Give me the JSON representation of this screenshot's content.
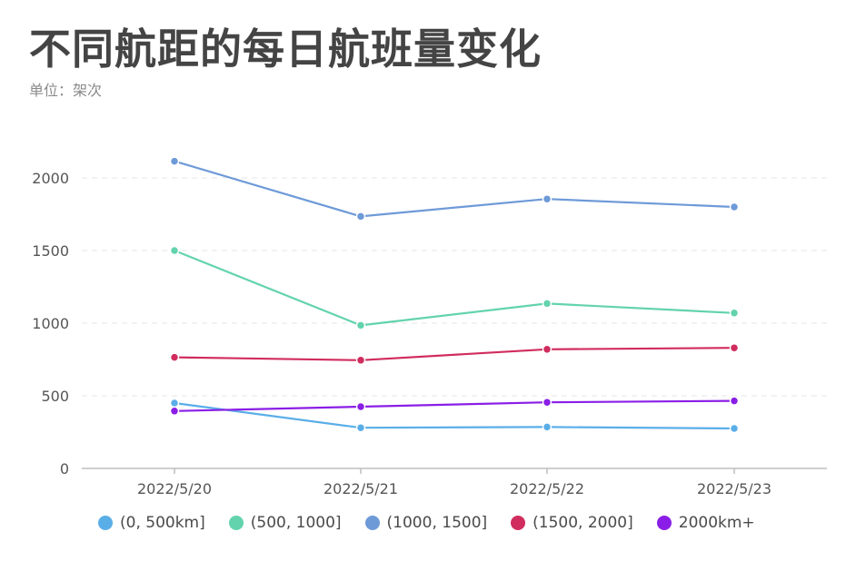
{
  "title": "不同航距的每日航班量变化",
  "subtitle": "单位：架次",
  "colors": {
    "axis": "#bdbdbd",
    "grid": "#e6e6e6",
    "tick_text": "#555555"
  },
  "chart_data": {
    "type": "line",
    "title": "不同航距的每日航班量变化",
    "subtitle": "单位：架次",
    "categories": [
      "2022/5/20",
      "2022/5/21",
      "2022/5/22",
      "2022/5/23"
    ],
    "ylim": [
      0,
      2000
    ],
    "yticks": [
      0,
      500,
      1000,
      1500,
      2000
    ],
    "grid": true,
    "legend_position": "bottom",
    "series": [
      {
        "name": "(0, 500km]",
        "color": "#5aaee8",
        "values": [
          450,
          280,
          285,
          275
        ]
      },
      {
        "name": "(500, 1000]",
        "color": "#63d3ad",
        "values": [
          1500,
          985,
          1135,
          1070
        ]
      },
      {
        "name": "(1000, 1500]",
        "color": "#6e9ad8",
        "values": [
          2115,
          1735,
          1855,
          1800
        ]
      },
      {
        "name": "(1500, 2000]",
        "color": "#d12c5e",
        "values": [
          765,
          745,
          820,
          830
        ]
      },
      {
        "name": "2000km+",
        "color": "#8a1ee6",
        "values": [
          395,
          425,
          455,
          465
        ]
      }
    ]
  }
}
